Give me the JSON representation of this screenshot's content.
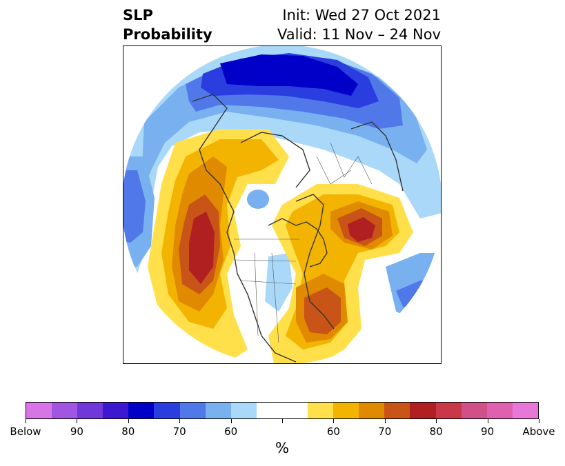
{
  "title": {
    "left_line1": "SLP",
    "left_line2": "Probability",
    "right_line1": "Init: Wed 27 Oct 2021",
    "right_line2": "Valid: 11 Nov – 24 Nov"
  },
  "colorbar": {
    "unit": "%",
    "colors": [
      "#d973e8",
      "#a056e0",
      "#7038d8",
      "#3c18d0",
      "#0000c8",
      "#2a3ee0",
      "#5078e8",
      "#78b0f0",
      "#aad8f8",
      "#ffffff",
      "#ffffff",
      "#ffe04a",
      "#f2b400",
      "#e08a00",
      "#c85418",
      "#b02020",
      "#c83848",
      "#d05088",
      "#e060b0",
      "#e878d8"
    ],
    "tick_labels": [
      "Below",
      "90",
      "80",
      "70",
      "60",
      "",
      "60",
      "70",
      "80",
      "90",
      "Above"
    ]
  },
  "map": {
    "projection": "north-polar-stereographic",
    "below_colors": {
      "p60": "#aad8f8",
      "p65": "#78b0f0",
      "p70": "#5078e8",
      "p75": "#2a3ee0",
      "p80": "#0000c8"
    },
    "above_colors": {
      "p60": "#ffe04a",
      "p65": "#f2b400",
      "p70": "#e08a00",
      "p75": "#c85418",
      "p80": "#b02020"
    }
  }
}
